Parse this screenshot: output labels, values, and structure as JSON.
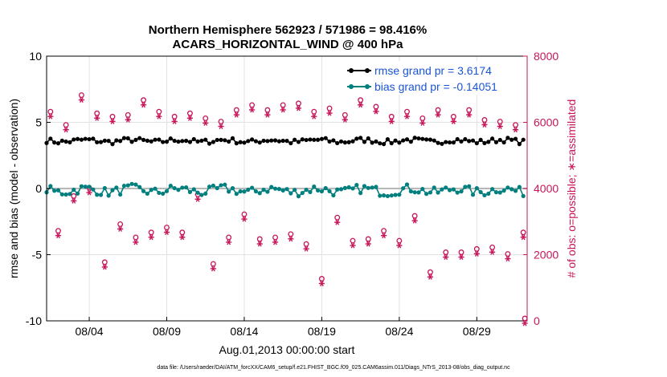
{
  "chart_data": {
    "type": "line",
    "title": "Northern Hemisphere 562923 / 571986 = 98.416%",
    "subtitle": "ACARS_HORIZONTAL_WIND @ 400 hPa",
    "xlabel": "Aug.01,2013 00:00:00 start",
    "ylabel_left": "rmse and bias (model - observation)",
    "ylabel_right": "# of obs: o=possible; ∗=assimilated",
    "footer": "data file: /Users/raeder/DAI/ATM_forcXX/CAM6_setup/f.e21.FHIST_BGC.f09_025.CAM6assim.011/Diags_NTrS_2013-08/obs_diag_output.nc",
    "x_ticks": [
      "08/04",
      "08/09",
      "08/14",
      "08/19",
      "08/24",
      "08/29"
    ],
    "x_tick_days": [
      4,
      9,
      14,
      19,
      24,
      29
    ],
    "xlim": [
      1.25,
      32.25
    ],
    "ylim_left": [
      -10,
      10
    ],
    "yticks_left": [
      "10",
      "5",
      "0",
      "-5",
      "-10"
    ],
    "ylim_right": [
      0,
      8000
    ],
    "yticks_right": [
      "8000",
      "6000",
      "4000",
      "2000",
      "0"
    ],
    "grid": true,
    "legend_position": "top-right",
    "legend": [
      "rmse grand pr = 3.6174",
      "bias grand pr = -0.14051"
    ],
    "colors": {
      "rmse": "#000000",
      "bias": "#007f7f",
      "obs": "#c8155a",
      "zero_line": "#b8b8b8"
    },
    "series_day_obs": [
      {
        "day": 1,
        "value": 6250
      },
      {
        "day": 2,
        "value": 5850
      },
      {
        "day": 3,
        "value": 6750
      },
      {
        "day": 4,
        "value": 6200
      },
      {
        "day": 5,
        "value": 6100
      },
      {
        "day": 6,
        "value": 6150
      },
      {
        "day": 7,
        "value": 6600
      },
      {
        "day": 8,
        "value": 6250
      },
      {
        "day": 9,
        "value": 6100
      },
      {
        "day": 10,
        "value": 6200
      },
      {
        "day": 11,
        "value": 6050
      },
      {
        "day": 12,
        "value": 5950
      },
      {
        "day": 13,
        "value": 6300
      },
      {
        "day": 14,
        "value": 6450
      },
      {
        "day": 15,
        "value": 6300
      },
      {
        "day": 16,
        "value": 6450
      },
      {
        "day": 17,
        "value": 6500
      },
      {
        "day": 18,
        "value": 6250
      },
      {
        "day": 19,
        "value": 6350
      },
      {
        "day": 20,
        "value": 6150
      },
      {
        "day": 21,
        "value": 6600
      },
      {
        "day": 22,
        "value": 6400
      },
      {
        "day": 23,
        "value": 6100
      },
      {
        "day": 24,
        "value": 6250
      },
      {
        "day": 25,
        "value": 6050
      },
      {
        "day": 26,
        "value": 6300
      },
      {
        "day": 27,
        "value": 6100
      },
      {
        "day": 28,
        "value": 6300
      },
      {
        "day": 29,
        "value": 6000
      },
      {
        "day": 30,
        "value": 5950
      },
      {
        "day": 31,
        "value": 5850
      }
    ],
    "series_night_obs": [
      {
        "day": 1,
        "value": 2650
      },
      {
        "day": 2,
        "value": 3700
      },
      {
        "day": 3,
        "value": 3950
      },
      {
        "day": 4,
        "value": 1700
      },
      {
        "day": 5,
        "value": 2850
      },
      {
        "day": 6,
        "value": 2450
      },
      {
        "day": 7,
        "value": 2600
      },
      {
        "day": 8,
        "value": 2750
      },
      {
        "day": 9,
        "value": 2600
      },
      {
        "day": 10,
        "value": 3750
      },
      {
        "day": 11,
        "value": 1650
      },
      {
        "day": 12,
        "value": 2450
      },
      {
        "day": 13,
        "value": 3150
      },
      {
        "day": 14,
        "value": 2400
      },
      {
        "day": 15,
        "value": 2450
      },
      {
        "day": 16,
        "value": 2550
      },
      {
        "day": 17,
        "value": 2250
      },
      {
        "day": 18,
        "value": 1200
      },
      {
        "day": 19,
        "value": 3050
      },
      {
        "day": 20,
        "value": 2350
      },
      {
        "day": 21,
        "value": 2400
      },
      {
        "day": 22,
        "value": 2650
      },
      {
        "day": 23,
        "value": 2350
      },
      {
        "day": 24,
        "value": 3100
      },
      {
        "day": 25,
        "value": 1400
      },
      {
        "day": 26,
        "value": 2000
      },
      {
        "day": 27,
        "value": 2000
      },
      {
        "day": 28,
        "value": 2100
      },
      {
        "day": 29,
        "value": 2150
      },
      {
        "day": 30,
        "value": 1950
      },
      {
        "day": 31,
        "value": 2600
      }
    ],
    "series_last_obs": [
      {
        "day": 32.1,
        "value": 0
      }
    ],
    "series": [
      {
        "name": "rmse",
        "mean": 3.6,
        "amplitude": 0.2,
        "values_note": "4 per day"
      },
      {
        "name": "bias",
        "mean": -0.14,
        "amplitude": 0.35,
        "values_note": "4 per day"
      }
    ]
  }
}
